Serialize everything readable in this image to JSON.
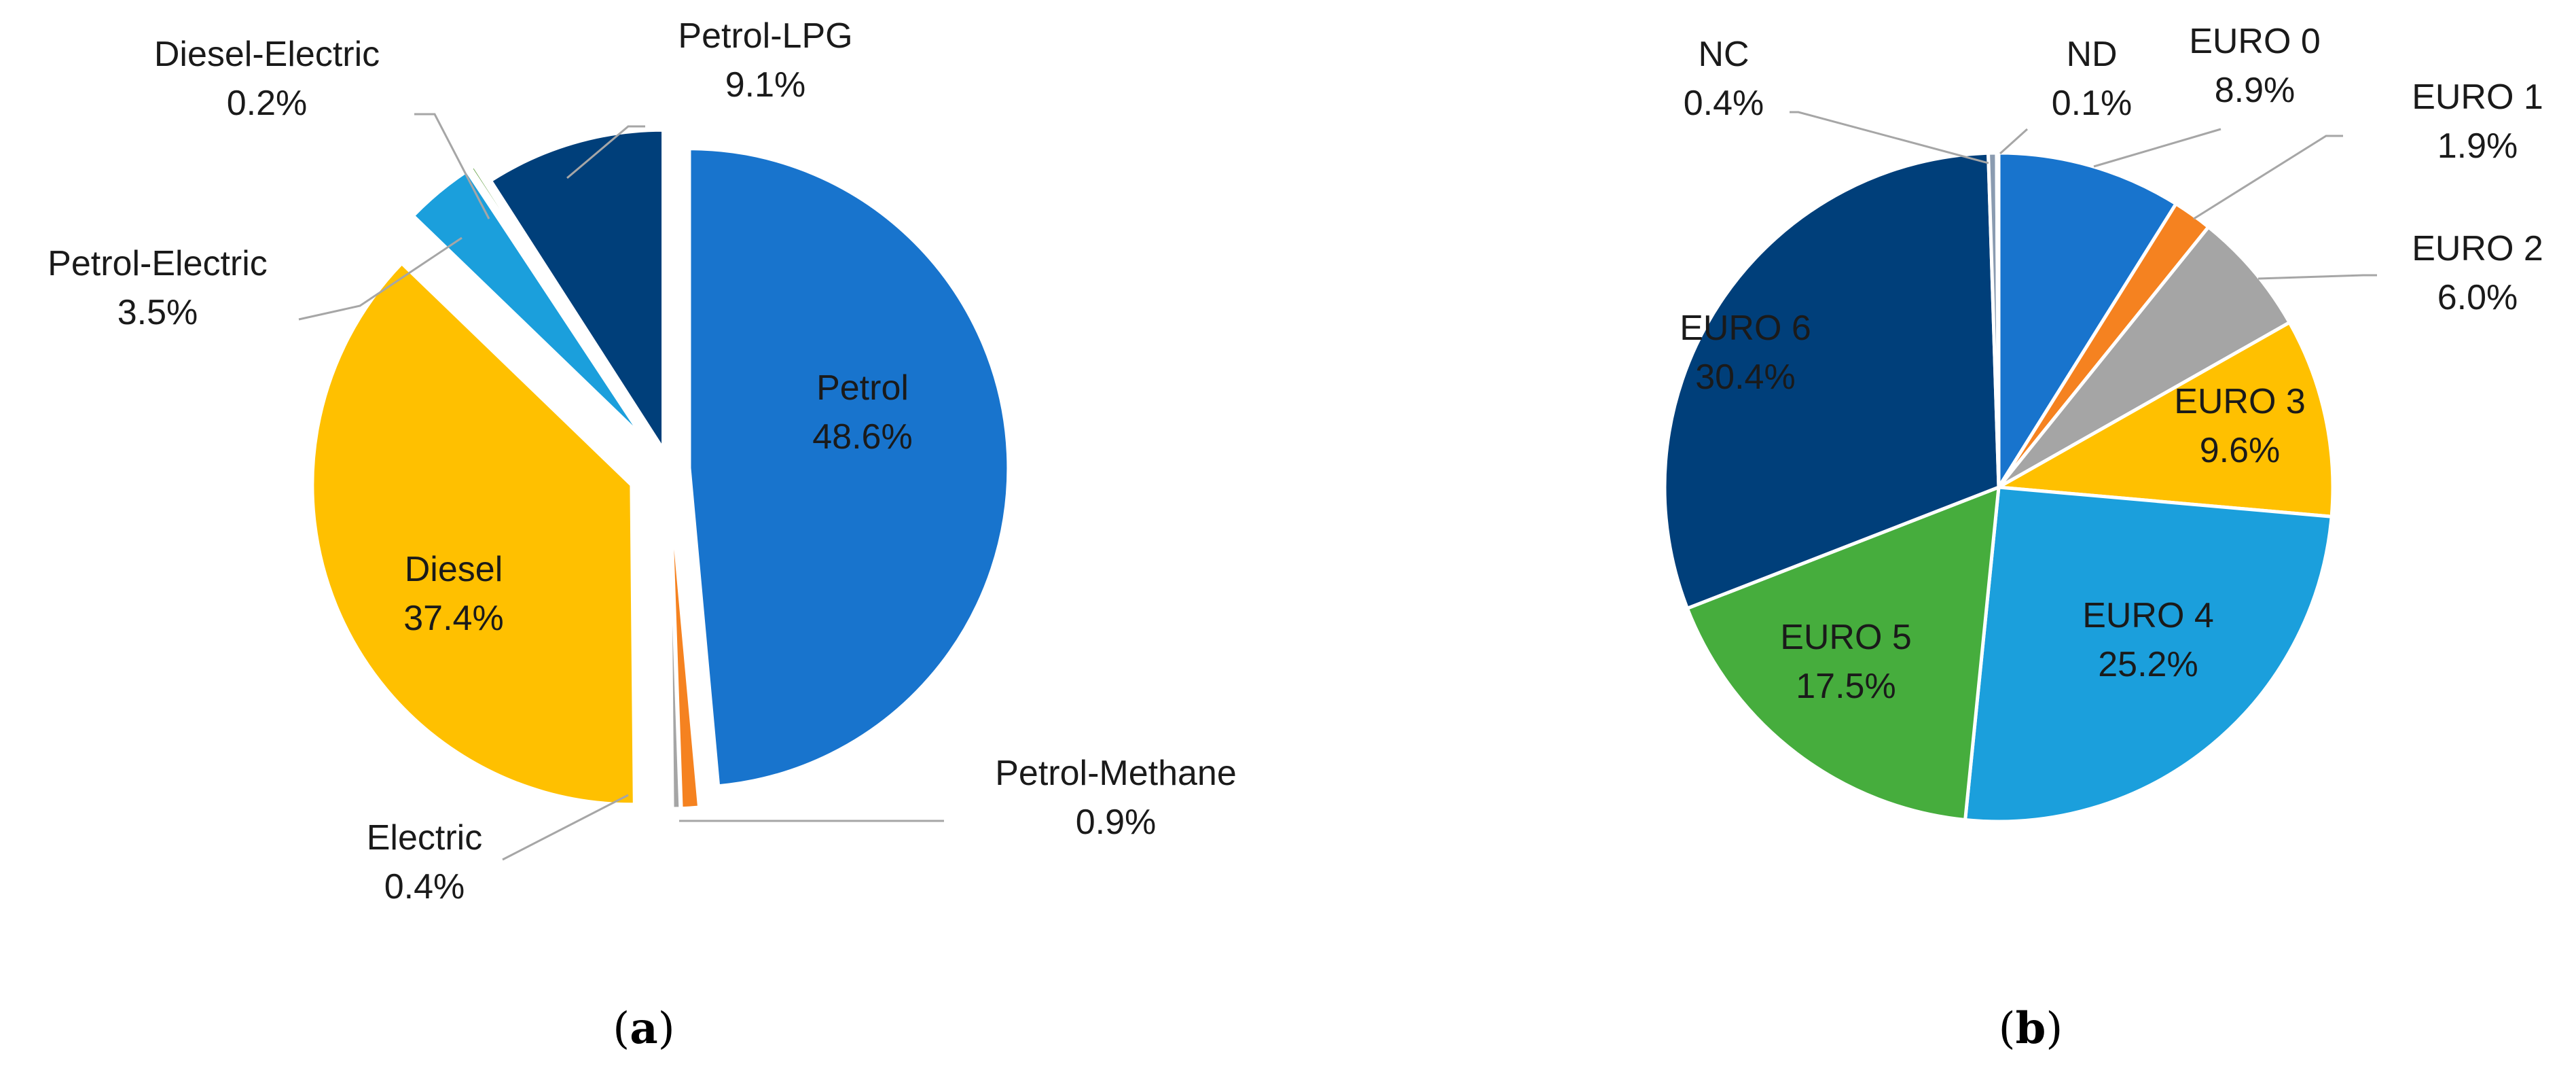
{
  "chart_data": [
    {
      "id": "a",
      "type": "pie",
      "caption_letter": "a",
      "colors": {
        "Petrol": "#1874cd",
        "Petrol-Methane": "#f58220",
        "Electric": "#a5a5a5",
        "Diesel": "#ffc000",
        "Petrol-Electric": "#1b9fdc",
        "Diesel-Electric": "#5a9b3a",
        "Petrol-LPG": "#003f7a"
      },
      "slices": [
        {
          "name": "Petrol",
          "value": 48.6,
          "label": "48.6%"
        },
        {
          "name": "Petrol-Methane",
          "value": 0.9,
          "label": "0.9%"
        },
        {
          "name": "Electric",
          "value": 0.4,
          "label": "0.4%"
        },
        {
          "name": "Diesel",
          "value": 37.4,
          "label": "37.4%"
        },
        {
          "name": "Petrol-Electric",
          "value": 3.5,
          "label": "3.5%"
        },
        {
          "name": "Diesel-Electric",
          "value": 0.2,
          "label": "0.2%"
        },
        {
          "name": "Petrol-LPG",
          "value": 9.1,
          "label": "9.1%"
        }
      ]
    },
    {
      "id": "b",
      "type": "pie",
      "caption_letter": "b",
      "colors": {
        "EURO 0": "#1874cd",
        "EURO 1": "#f58220",
        "EURO 2": "#a5a5a5",
        "EURO 3": "#ffc000",
        "EURO 4": "#1b9fdc",
        "EURO 5": "#46ad3d",
        "EURO 6": "#003f7a",
        "NC": "#8a9bb0",
        "ND": "#c0504d"
      },
      "slices": [
        {
          "name": "EURO 0",
          "value": 8.9,
          "label": "8.9%"
        },
        {
          "name": "EURO 1",
          "value": 1.9,
          "label": "1.9%"
        },
        {
          "name": "EURO 2",
          "value": 6.0,
          "label": "6.0%"
        },
        {
          "name": "EURO 3",
          "value": 9.6,
          "label": "9.6%"
        },
        {
          "name": "EURO 4",
          "value": 25.2,
          "label": "25.2%"
        },
        {
          "name": "EURO 5",
          "value": 17.5,
          "label": "17.5%"
        },
        {
          "name": "EURO 6",
          "value": 30.4,
          "label": "30.4%"
        },
        {
          "name": "NC",
          "value": 0.4,
          "label": "0.4%"
        },
        {
          "name": "ND",
          "value": 0.1,
          "label": "0.1%"
        }
      ]
    }
  ]
}
